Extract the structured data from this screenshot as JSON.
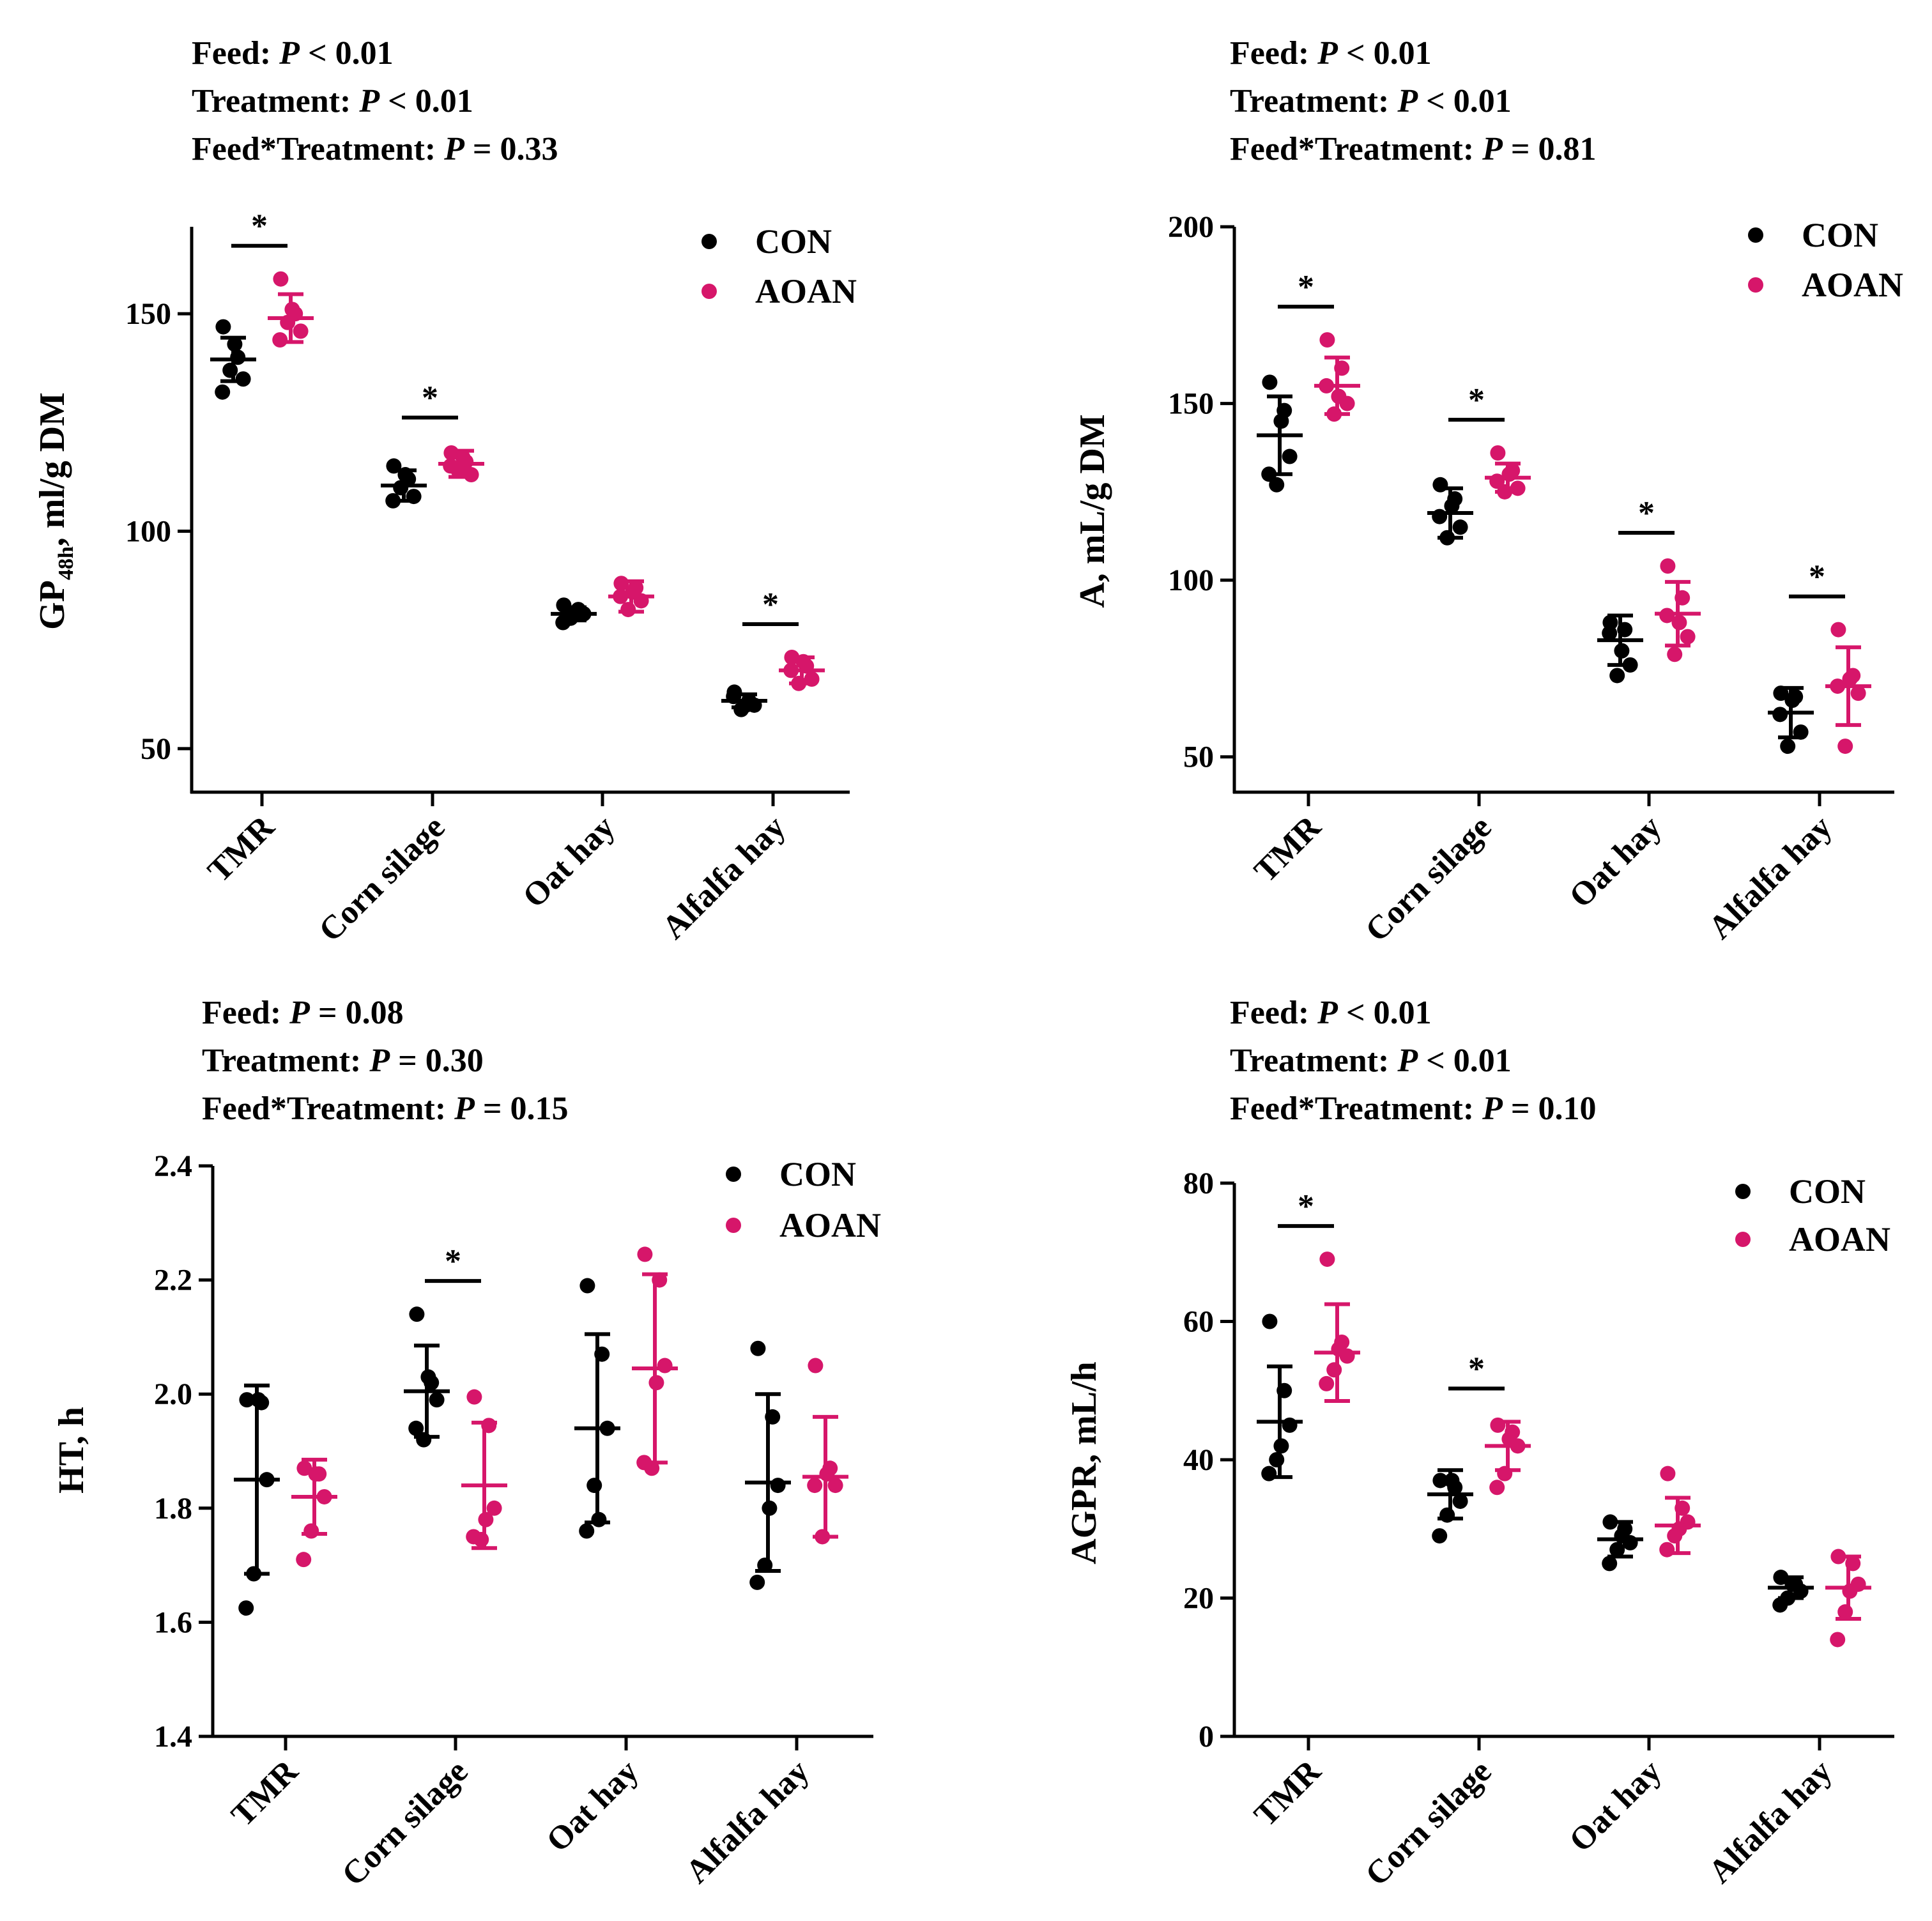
{
  "colors": {
    "con": "#000000",
    "aoan": "#d6166a"
  },
  "chart_data": [
    {
      "type": "scatter",
      "panel": "top-left",
      "stats": [
        {
          "label": "Feed:",
          "p_symbol": "P",
          "op": "<",
          "value": "0.01"
        },
        {
          "label": "Treatment:",
          "p_symbol": "P",
          "op": "<",
          "value": "0.01"
        },
        {
          "label": "Feed*Treatment:",
          "p_symbol": "P",
          "op": "=",
          "value": "0.33"
        }
      ],
      "ylabel_main": "GP",
      "ylabel_sub": "48h",
      "ylabel_rest": ", ml/g DM",
      "ylim": [
        40,
        170
      ],
      "yticks": [
        50,
        100,
        150
      ],
      "ytick_labels": [
        "50",
        "100",
        "150"
      ],
      "categories": [
        "TMR",
        "Corn silage",
        "Oat hay",
        "Alfalfa hay"
      ],
      "legend": {
        "position": "top-right",
        "entries": [
          "CON",
          "AOAN"
        ]
      },
      "sig_marker": "*",
      "significant": [
        true,
        true,
        false,
        true
      ],
      "series": [
        {
          "name": "CON",
          "mean": [
            139.5,
            110.5,
            81,
            61
          ],
          "sd": [
            5,
            3.5,
            1.5,
            1.5
          ],
          "points": [
            [
              147,
              140,
              135,
              137,
              132,
              143
            ],
            [
              115,
              112,
              108,
              110,
              107,
              113
            ],
            [
              83,
              82,
              81,
              80,
              79,
              81
            ],
            [
              63,
              61,
              60,
              59,
              62,
              60
            ]
          ]
        },
        {
          "name": "AOAN",
          "mean": [
            149,
            115.5,
            85,
            68
          ],
          "sd": [
            5.5,
            3,
            3.5,
            3
          ],
          "points": [
            [
              158,
              150,
              146,
              148,
              144,
              151
            ],
            [
              118,
              116,
              113,
              114,
              115,
              117
            ],
            [
              88,
              87,
              84,
              82,
              85,
              86
            ],
            [
              71,
              69,
              66,
              65,
              68,
              70
            ]
          ]
        }
      ]
    },
    {
      "type": "scatter",
      "panel": "top-right",
      "stats": [
        {
          "label": "Feed:",
          "p_symbol": "P",
          "op": "<",
          "value": "0.01"
        },
        {
          "label": "Treatment:",
          "p_symbol": "P",
          "op": "<",
          "value": "0.01"
        },
        {
          "label": "Feed*Treatment:",
          "p_symbol": "P",
          "op": "=",
          "value": "0.81"
        }
      ],
      "ylabel_main": "A, mL/g DM",
      "ylabel_sub": "",
      "ylabel_rest": "",
      "ylim": [
        40,
        200
      ],
      "yticks": [
        50,
        100,
        150,
        200
      ],
      "ytick_labels": [
        "50",
        "100",
        "150",
        "200"
      ],
      "categories": [
        "TMR",
        "Corn silage",
        "Oat hay",
        "Alfalfa hay"
      ],
      "legend": {
        "position": "top-right",
        "entries": [
          "CON",
          "AOAN"
        ]
      },
      "sig_marker": "*",
      "significant": [
        true,
        true,
        true,
        true
      ],
      "series": [
        {
          "name": "CON",
          "mean": [
            141,
            119,
            83,
            62.5
          ],
          "sd": [
            11,
            7,
            7,
            7
          ],
          "points": [
            [
              156,
              148,
              135,
              127,
              130,
              145
            ],
            [
              127,
              123,
              115,
              112,
              118,
              121
            ],
            [
              88,
              86,
              76,
              73,
              85,
              80
            ],
            [
              68,
              67,
              57,
              53,
              62,
              66
            ]
          ]
        },
        {
          "name": "AOAN",
          "mean": [
            155,
            129,
            90.5,
            70
          ],
          "sd": [
            8,
            4,
            9,
            11
          ],
          "points": [
            [
              168,
              160,
              150,
              147,
              155,
              152
            ],
            [
              136,
              131,
              126,
              125,
              128,
              130
            ],
            [
              104,
              95,
              84,
              79,
              90,
              88
            ],
            [
              86,
              73,
              68,
              53,
              70,
              72
            ]
          ]
        }
      ]
    },
    {
      "type": "scatter",
      "panel": "bottom-left",
      "stats": [
        {
          "label": "Feed:",
          "p_symbol": "P",
          "op": "=",
          "value": "0.08"
        },
        {
          "label": "Treatment:",
          "p_symbol": "P",
          "op": "=",
          "value": "0.30"
        },
        {
          "label": "Feed*Treatment:",
          "p_symbol": "P",
          "op": "=",
          "value": "0.15"
        }
      ],
      "ylabel_main": "HT, h",
      "ylabel_sub": "",
      "ylabel_rest": "",
      "ylim": [
        1.4,
        2.4
      ],
      "yticks": [
        1.4,
        1.6,
        1.8,
        2.0,
        2.2,
        2.4
      ],
      "ytick_labels": [
        "1.4",
        "1.6",
        "1.8",
        "2.0",
        "2.2",
        "2.4"
      ],
      "categories": [
        "TMR",
        "Corn silage",
        "Oat hay",
        "Alfalfa hay"
      ],
      "legend": {
        "position": "top-right",
        "entries": [
          "CON",
          "AOAN"
        ]
      },
      "sig_marker": "*",
      "significant": [
        false,
        true,
        false,
        false
      ],
      "series": [
        {
          "name": "CON",
          "mean": [
            1.85,
            2.005,
            1.94,
            1.845
          ],
          "sd": [
            0.165,
            0.08,
            0.165,
            0.155
          ],
          "points": [
            [
              1.99,
              1.985,
              1.85,
              1.685,
              1.625,
              1.99
            ],
            [
              2.14,
              2.02,
              1.99,
              1.92,
              1.94,
              2.03
            ],
            [
              2.19,
              2.07,
              1.94,
              1.84,
              1.76,
              1.78
            ],
            [
              2.08,
              1.96,
              1.84,
              1.7,
              1.67,
              1.8
            ]
          ]
        },
        {
          "name": "AOAN",
          "mean": [
            1.82,
            1.84,
            2.045,
            1.855
          ],
          "sd": [
            0.065,
            0.11,
            0.165,
            0.105
          ],
          "points": [
            [
              1.87,
              1.86,
              1.82,
              1.76,
              1.71,
              1.86
            ],
            [
              1.995,
              1.945,
              1.8,
              1.745,
              1.75,
              1.78
            ],
            [
              2.245,
              2.2,
              2.05,
              1.87,
              1.88,
              2.02
            ],
            [
              2.05,
              1.87,
              1.84,
              1.75,
              1.84,
              1.86
            ]
          ]
        }
      ]
    },
    {
      "type": "scatter",
      "panel": "bottom-right",
      "stats": [
        {
          "label": "Feed:",
          "p_symbol": "P",
          "op": "<",
          "value": "0.01"
        },
        {
          "label": "Treatment:",
          "p_symbol": "P",
          "op": "<",
          "value": "0.01"
        },
        {
          "label": "Feed*Treatment:",
          "p_symbol": "P",
          "op": "=",
          "value": "0.10"
        }
      ],
      "ylabel_main": "AGPR, mL/h",
      "ylabel_sub": "",
      "ylabel_rest": "",
      "ylim": [
        0,
        80
      ],
      "yticks": [
        0,
        20,
        40,
        60,
        80
      ],
      "ytick_labels": [
        "0",
        "20",
        "40",
        "60",
        "80"
      ],
      "categories": [
        "TMR",
        "Corn silage",
        "Oat hay",
        "Alfalfa hay"
      ],
      "legend": {
        "position": "top-right",
        "entries": [
          "CON",
          "AOAN"
        ]
      },
      "sig_marker": "*",
      "significant": [
        true,
        true,
        false,
        false
      ],
      "series": [
        {
          "name": "CON",
          "mean": [
            45.5,
            35,
            28.5,
            21.5
          ],
          "sd": [
            8,
            3.5,
            2.5,
            1.5
          ],
          "points": [
            [
              60,
              50,
              45,
              40,
              38,
              42
            ],
            [
              37,
              36,
              34,
              32,
              29,
              37
            ],
            [
              31,
              30,
              28,
              27,
              25,
              29
            ],
            [
              23,
              22,
              21,
              20,
              19,
              22
            ]
          ]
        },
        {
          "name": "AOAN",
          "mean": [
            55.5,
            42,
            30.5,
            21.5
          ],
          "sd": [
            7,
            3.5,
            4,
            4.5
          ],
          "points": [
            [
              69,
              57,
              55,
              53,
              51,
              56
            ],
            [
              45,
              44,
              42,
              38,
              36,
              43
            ],
            [
              38,
              33,
              31,
              29,
              27,
              30
            ],
            [
              26,
              25,
              22,
              18,
              14,
              21
            ]
          ]
        }
      ]
    }
  ]
}
